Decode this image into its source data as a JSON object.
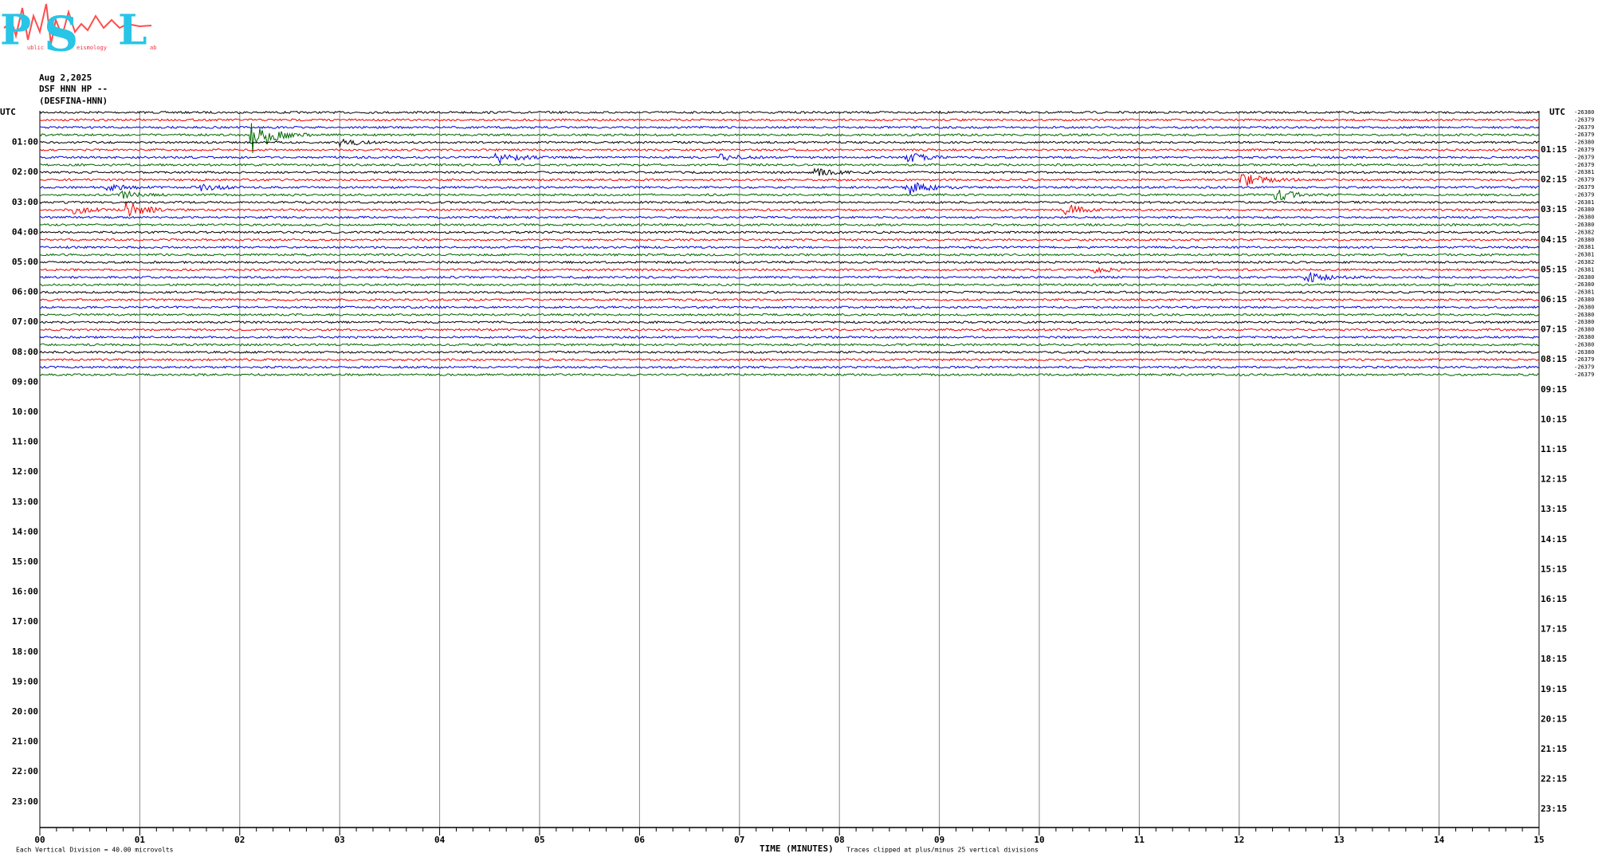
{
  "logo": {
    "letters": [
      "P",
      "S",
      "L"
    ],
    "small": [
      "ublic",
      "eismology",
      "ab"
    ]
  },
  "header": {
    "date": "Aug 2,2025",
    "station": "DSF HNN HP --",
    "name": "(DESFINA-HNN)"
  },
  "left_label": "UTC",
  "right_label": "UTC",
  "left_times": [
    "01:00",
    "02:00",
    "03:00",
    "04:00",
    "05:00",
    "06:00",
    "07:00",
    "08:00",
    "09:00",
    "10:00",
    "11:00",
    "12:00",
    "13:00",
    "14:00",
    "15:00",
    "16:00",
    "17:00",
    "18:00",
    "19:00",
    "20:00",
    "21:00",
    "22:00",
    "23:00"
  ],
  "right_times": [
    "01:15",
    "02:15",
    "03:15",
    "04:15",
    "05:15",
    "06:15",
    "07:15",
    "08:15",
    "09:15",
    "10:15",
    "11:15",
    "12:15",
    "13:15",
    "14:15",
    "15:15",
    "16:15",
    "17:15",
    "18:15",
    "19:15",
    "20:15",
    "21:15",
    "22:15",
    "23:15"
  ],
  "trace_offsets": [
    "-26380",
    "-26379",
    "-26379",
    "-26379",
    "-26380",
    "-26379",
    "-26379",
    "-26379",
    "-26381",
    "-26379",
    "-26379",
    "-26379",
    "-26381",
    "-26380",
    "-26380",
    "-26380",
    "-26382",
    "-26380",
    "-26381",
    "-26381",
    "-26382",
    "-26381",
    "-26380",
    "-26380",
    "-26381",
    "-26380",
    "-26380",
    "-26380",
    "-26380",
    "-26380",
    "-26380",
    "-26380",
    "-26380",
    "-26379",
    "-26379",
    "-26379"
  ],
  "x_ticks": [
    "00",
    "01",
    "02",
    "03",
    "04",
    "05",
    "06",
    "07",
    "08",
    "09",
    "10",
    "11",
    "12",
    "13",
    "14",
    "15"
  ],
  "x_label": "TIME (MINUTES)",
  "footer_left": "Each Vertical Division =   40.00 microvolts",
  "footer_right": "Traces clipped at plus/minus 25 vertical divisions"
}
